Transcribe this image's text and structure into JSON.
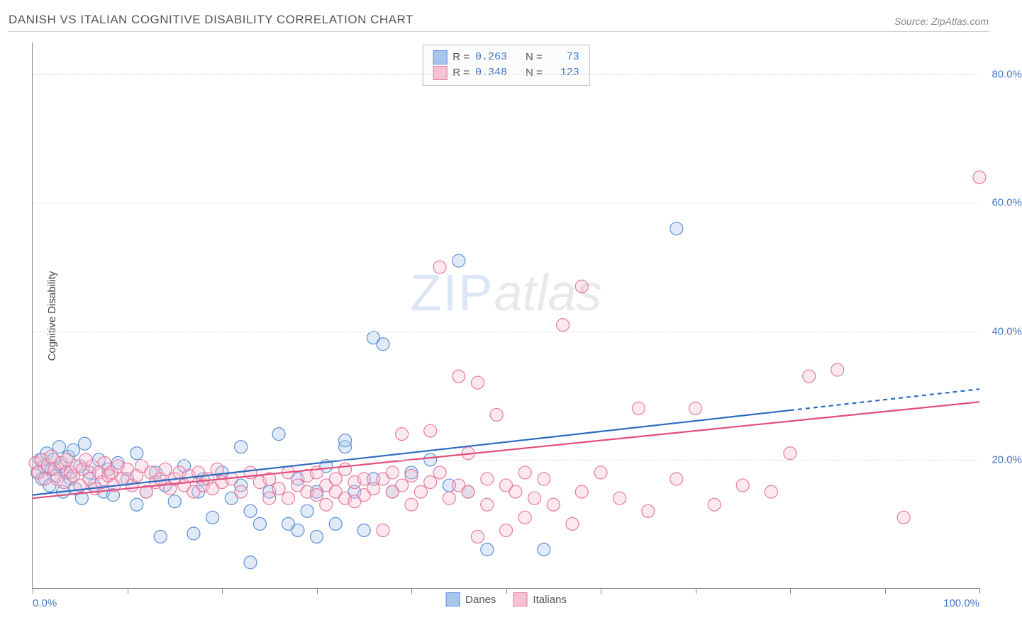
{
  "header": {
    "title": "DANISH VS ITALIAN COGNITIVE DISABILITY CORRELATION CHART",
    "source": "Source: ZipAtlas.com"
  },
  "watermark": {
    "part1": "ZIP",
    "part2": "atlas"
  },
  "chart": {
    "type": "scatter",
    "y_axis_title": "Cognitive Disability",
    "xlim": [
      0,
      100
    ],
    "ylim": [
      0,
      85
    ],
    "x_ticks": [
      0,
      10,
      20,
      30,
      40,
      50,
      60,
      70,
      80,
      90,
      100
    ],
    "x_tick_labels": {
      "0": "0.0%",
      "100": "100.0%"
    },
    "y_grid": [
      20,
      40,
      60,
      80
    ],
    "y_tick_labels": {
      "20": "20.0%",
      "40": "40.0%",
      "60": "60.0%",
      "80": "80.0%"
    },
    "background_color": "#ffffff",
    "grid_color": "#dddddd",
    "axis_color": "#888888",
    "tick_label_color": "#4178c8",
    "tick_label_fontsize": 15,
    "marker_radius": 9,
    "marker_stroke_width": 1.2,
    "marker_fill_opacity": 0.35,
    "series": [
      {
        "name": "Danes",
        "label": "Danes",
        "color_fill": "#a8c5eb",
        "color_stroke": "#5b8fd6",
        "R": "0.263",
        "N": "73",
        "trend": {
          "y_at_x0": 14.5,
          "y_at_x100": 31.0,
          "solid_until_x": 80,
          "line_color": "#2e6bc0",
          "line_width": 2.2
        },
        "points": [
          [
            0.5,
            18
          ],
          [
            0.8,
            20
          ],
          [
            1,
            17
          ],
          [
            1.2,
            19
          ],
          [
            1.5,
            21
          ],
          [
            1.8,
            16
          ],
          [
            2,
            18.5
          ],
          [
            2.2,
            20
          ],
          [
            2.5,
            17.5
          ],
          [
            2.8,
            22
          ],
          [
            3,
            19
          ],
          [
            3.2,
            15
          ],
          [
            3.5,
            18
          ],
          [
            3.8,
            20.5
          ],
          [
            4,
            17
          ],
          [
            4.3,
            21.5
          ],
          [
            4.5,
            15.5
          ],
          [
            5,
            19
          ],
          [
            5.2,
            14
          ],
          [
            5.5,
            22.5
          ],
          [
            6,
            18
          ],
          [
            6.5,
            16
          ],
          [
            7,
            20
          ],
          [
            7.5,
            15
          ],
          [
            8,
            18.5
          ],
          [
            8.5,
            14.5
          ],
          [
            9,
            19.5
          ],
          [
            10,
            17
          ],
          [
            11,
            13
          ],
          [
            11,
            21
          ],
          [
            12,
            15
          ],
          [
            13,
            18
          ],
          [
            13.5,
            8
          ],
          [
            14,
            16
          ],
          [
            15,
            13.5
          ],
          [
            16,
            19
          ],
          [
            17,
            8.5
          ],
          [
            17.5,
            15
          ],
          [
            18,
            17
          ],
          [
            19,
            11
          ],
          [
            20,
            18
          ],
          [
            21,
            14
          ],
          [
            22,
            22
          ],
          [
            22,
            16
          ],
          [
            23,
            12
          ],
          [
            23,
            4
          ],
          [
            24,
            10
          ],
          [
            25,
            15
          ],
          [
            26,
            24
          ],
          [
            27,
            10
          ],
          [
            28,
            9
          ],
          [
            28,
            17
          ],
          [
            29,
            12
          ],
          [
            30,
            15
          ],
          [
            30,
            8
          ],
          [
            31,
            19
          ],
          [
            32,
            10
          ],
          [
            33,
            22
          ],
          [
            33,
            23
          ],
          [
            34,
            15
          ],
          [
            35,
            9
          ],
          [
            36,
            39
          ],
          [
            36,
            17
          ],
          [
            37,
            38
          ],
          [
            38,
            15
          ],
          [
            40,
            18
          ],
          [
            42,
            20
          ],
          [
            44,
            16
          ],
          [
            45,
            51
          ],
          [
            46,
            15
          ],
          [
            48,
            6
          ],
          [
            54,
            6
          ],
          [
            68,
            56
          ]
        ]
      },
      {
        "name": "Italians",
        "label": "Italians",
        "color_fill": "#f6c1d0",
        "color_stroke": "#e77ba0",
        "R": "0.348",
        "N": "123",
        "trend": {
          "y_at_x0": 14.0,
          "y_at_x100": 29.0,
          "solid_until_x": 100,
          "line_color": "#e24d7a",
          "line_width": 2.2
        },
        "points": [
          [
            0.3,
            19.5
          ],
          [
            0.6,
            18
          ],
          [
            1,
            20
          ],
          [
            1.3,
            17
          ],
          [
            1.6,
            19
          ],
          [
            2,
            20.5
          ],
          [
            2.3,
            18.5
          ],
          [
            2.6,
            17
          ],
          [
            3,
            19.5
          ],
          [
            3.3,
            16.5
          ],
          [
            3.6,
            20
          ],
          [
            4,
            18
          ],
          [
            4.3,
            17.5
          ],
          [
            4.6,
            19
          ],
          [
            5,
            16
          ],
          [
            5.3,
            18.5
          ],
          [
            5.6,
            20
          ],
          [
            6,
            17
          ],
          [
            6.3,
            19
          ],
          [
            6.6,
            15.5
          ],
          [
            7,
            18
          ],
          [
            7.3,
            16.5
          ],
          [
            7.6,
            19.5
          ],
          [
            8,
            17.5
          ],
          [
            8.3,
            18
          ],
          [
            8.6,
            16
          ],
          [
            9,
            19
          ],
          [
            9.5,
            17
          ],
          [
            10,
            18.5
          ],
          [
            10.5,
            16
          ],
          [
            11,
            17.5
          ],
          [
            11.5,
            19
          ],
          [
            12,
            15
          ],
          [
            12.5,
            18
          ],
          [
            13,
            16.5
          ],
          [
            13.5,
            17
          ],
          [
            14,
            18.5
          ],
          [
            14.5,
            15.5
          ],
          [
            15,
            17
          ],
          [
            15.5,
            18
          ],
          [
            16,
            16
          ],
          [
            16.5,
            17.5
          ],
          [
            17,
            15
          ],
          [
            17.5,
            18
          ],
          [
            18,
            16
          ],
          [
            18.5,
            17
          ],
          [
            19,
            15.5
          ],
          [
            19.5,
            18.5
          ],
          [
            20,
            16.5
          ],
          [
            21,
            17
          ],
          [
            22,
            15
          ],
          [
            23,
            18
          ],
          [
            24,
            16.5
          ],
          [
            25,
            14
          ],
          [
            25,
            17
          ],
          [
            26,
            15.5
          ],
          [
            27,
            18
          ],
          [
            27,
            14
          ],
          [
            28,
            16
          ],
          [
            29,
            15
          ],
          [
            29,
            17.5
          ],
          [
            30,
            14.5
          ],
          [
            30,
            18
          ],
          [
            31,
            16
          ],
          [
            31,
            13
          ],
          [
            32,
            17
          ],
          [
            32,
            15
          ],
          [
            33,
            18.5
          ],
          [
            33,
            14
          ],
          [
            34,
            16.5
          ],
          [
            34,
            13.5
          ],
          [
            35,
            17
          ],
          [
            35,
            14.5
          ],
          [
            36,
            15.5
          ],
          [
            37,
            17
          ],
          [
            37,
            9
          ],
          [
            38,
            15
          ],
          [
            38,
            18
          ],
          [
            39,
            24
          ],
          [
            39,
            16
          ],
          [
            40,
            13
          ],
          [
            40,
            17.5
          ],
          [
            41,
            15
          ],
          [
            42,
            24.5
          ],
          [
            42,
            16.5
          ],
          [
            43,
            50
          ],
          [
            43,
            18
          ],
          [
            44,
            14
          ],
          [
            45,
            33
          ],
          [
            45,
            16
          ],
          [
            46,
            21
          ],
          [
            46,
            15
          ],
          [
            47,
            32
          ],
          [
            47,
            8
          ],
          [
            48,
            17
          ],
          [
            48,
            13
          ],
          [
            49,
            27
          ],
          [
            50,
            16
          ],
          [
            50,
            9
          ],
          [
            51,
            15
          ],
          [
            52,
            18
          ],
          [
            52,
            11
          ],
          [
            53,
            14
          ],
          [
            54,
            17
          ],
          [
            55,
            13
          ],
          [
            56,
            41
          ],
          [
            57,
            10
          ],
          [
            58,
            47
          ],
          [
            58,
            15
          ],
          [
            60,
            18
          ],
          [
            62,
            14
          ],
          [
            64,
            28
          ],
          [
            65,
            12
          ],
          [
            68,
            17
          ],
          [
            70,
            28
          ],
          [
            72,
            13
          ],
          [
            75,
            16
          ],
          [
            78,
            15
          ],
          [
            80,
            21
          ],
          [
            82,
            33
          ],
          [
            85,
            34
          ],
          [
            92,
            11
          ],
          [
            100,
            64
          ]
        ]
      }
    ]
  },
  "legend_top": {
    "r_label": "R =",
    "n_label": "N ="
  },
  "legend_bottom": {
    "items": [
      "Danes",
      "Italians"
    ]
  }
}
